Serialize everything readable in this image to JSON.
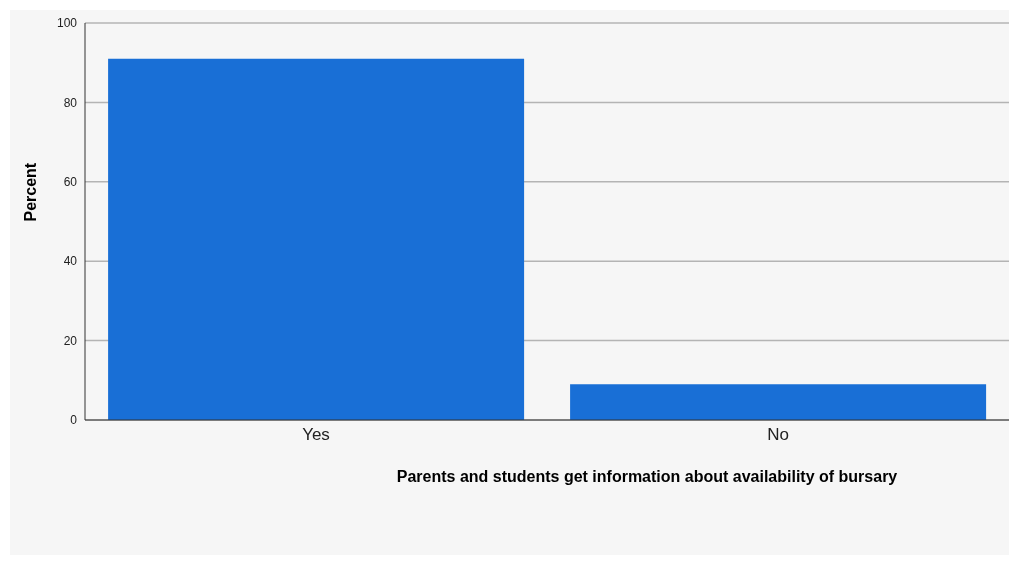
{
  "chart_data": {
    "type": "bar",
    "xlabel": "Parents and students get information about availability of bursary",
    "ylabel": "Percent",
    "categories": [
      "Yes",
      "No"
    ],
    "values": [
      91,
      9
    ],
    "color": "#196fd6",
    "ylim": [
      0,
      100
    ],
    "yticks": [
      0,
      20,
      40,
      60,
      80,
      100
    ],
    "grid": "y"
  }
}
